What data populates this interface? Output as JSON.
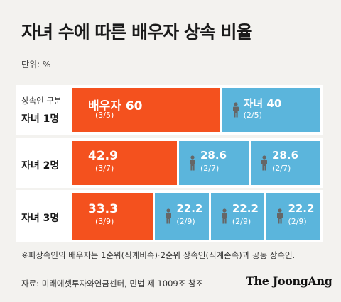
{
  "title": "자녀 수에 따른 배우자 상속 비율",
  "unit_label": "단위: %",
  "header_label": "상속인 구분",
  "colors": {
    "spouse": "#f4511e",
    "children": "#5bb5dc",
    "row_bg": "#ffffff",
    "background": "#f3f2ef"
  },
  "chart_data": {
    "type": "bar",
    "stacked": true,
    "orientation": "horizontal",
    "unit": "%",
    "rows": [
      {
        "label": "자녀 1명",
        "segments": [
          {
            "role": "spouse",
            "value": 60,
            "display": "60",
            "fraction": "(3/5)",
            "name": "배우자",
            "icon": ""
          },
          {
            "role": "child",
            "value": 40,
            "display": "40",
            "fraction": "(2/5)",
            "name": "자녀",
            "icon": "person-icon"
          }
        ]
      },
      {
        "label": "자녀 2명",
        "segments": [
          {
            "role": "spouse",
            "value": 42.9,
            "display": "42.9",
            "fraction": "(3/7)",
            "name": "",
            "icon": ""
          },
          {
            "role": "child",
            "value": 28.6,
            "display": "28.6",
            "fraction": "(2/7)",
            "name": "",
            "icon": "person-icon"
          },
          {
            "role": "child",
            "value": 28.6,
            "display": "28.6",
            "fraction": "(2/7)",
            "name": "",
            "icon": "person-icon"
          }
        ]
      },
      {
        "label": "자녀 3명",
        "segments": [
          {
            "role": "spouse",
            "value": 33.3,
            "display": "33.3",
            "fraction": "(3/9)",
            "name": "",
            "icon": ""
          },
          {
            "role": "child",
            "value": 22.2,
            "display": "22.2",
            "fraction": "(2/9)",
            "name": "",
            "icon": "person-icon"
          },
          {
            "role": "child",
            "value": 22.2,
            "display": "22.2",
            "fraction": "(2/9)",
            "name": "",
            "icon": "person-icon"
          },
          {
            "role": "child",
            "value": 22.2,
            "display": "22.2",
            "fraction": "(2/9)",
            "name": "",
            "icon": "person-icon"
          }
        ]
      }
    ]
  },
  "note": "※피상속인의 배우자는 1순위(직계비속)·2순위 상속인(직계존속)과 공동 상속인.",
  "source": "자료: 미래에셋투자와연금센터, 민법 제 1009조 참조",
  "logo": "The JoongAng"
}
